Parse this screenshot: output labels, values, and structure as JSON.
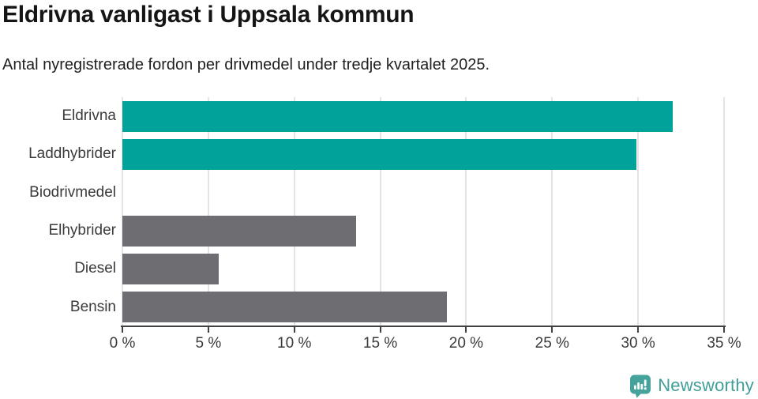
{
  "header": {
    "title": "Eldrivna vanligast i Uppsala kommun",
    "subtitle": "Antal nyregistrerade fordon per drivmedel under tredje kvartalet 2025."
  },
  "chart_data": {
    "type": "bar",
    "orientation": "horizontal",
    "title": "Eldrivna vanligast i Uppsala kommun",
    "subtitle": "Antal nyregistrerade fordon per drivmedel under tredje kvartalet 2025.",
    "categories": [
      "Eldrivna",
      "Laddhybrider",
      "Biodrivmedel",
      "Elhybrider",
      "Diesel",
      "Bensin"
    ],
    "values": [
      32.0,
      29.9,
      0,
      13.6,
      5.6,
      18.9
    ],
    "unit": "%",
    "bar_colors": [
      "#00a29a",
      "#00a29a",
      "#6e6e72",
      "#6e6e72",
      "#6e6e72",
      "#6e6e72"
    ],
    "highlight_color": "#00a29a",
    "default_color": "#6e6e72",
    "xlim": [
      0,
      35
    ],
    "xticks": [
      0,
      5,
      10,
      15,
      20,
      25,
      30,
      35
    ],
    "xtick_labels": [
      "0 %",
      "5 %",
      "10 %",
      "15 %",
      "20 %",
      "25 %",
      "30 %",
      "35 %"
    ],
    "grid": true,
    "legend": false,
    "xlabel": "",
    "ylabel": ""
  },
  "footer": {
    "brand": "Newsworthy",
    "brand_color": "#3f9f98",
    "logo_icon": "speech-bubble-bar-chart-icon"
  },
  "colors": {
    "grid": "#e4e4e4",
    "axis": "#414141",
    "category_label": "#3b3b3b",
    "tick_label": "#3a3a3a",
    "title": "#151515"
  }
}
